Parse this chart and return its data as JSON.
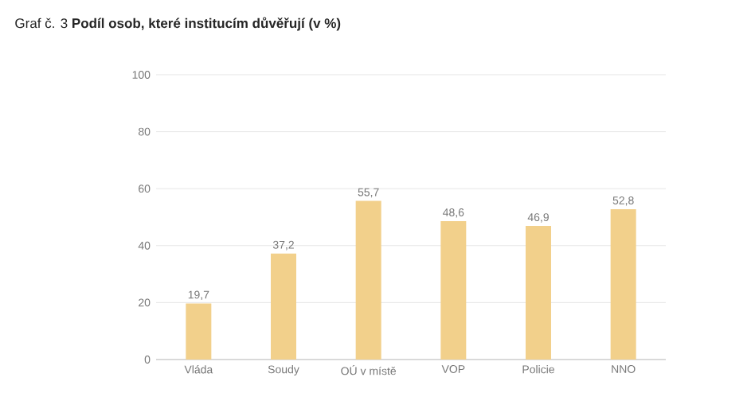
{
  "chart_data": {
    "type": "bar",
    "title": "Graf č. 3 **Podíl osob, které institucím důvěřují (v %)**",
    "categories": [
      "Vláda",
      "Soudy",
      "OÚ v místě",
      "VOP",
      "Policie",
      "NNO"
    ],
    "values": [
      19.7,
      37.2,
      55.7,
      48.6,
      46.9,
      52.8
    ],
    "value_labels": [
      "19,7",
      "37,2",
      "55,7",
      "48,6",
      "46,9",
      "52,8"
    ],
    "color": "#f2d08b",
    "ylim": [
      0,
      100
    ],
    "yticks": [
      0,
      20,
      40,
      60,
      80,
      100
    ],
    "grid": "y"
  }
}
